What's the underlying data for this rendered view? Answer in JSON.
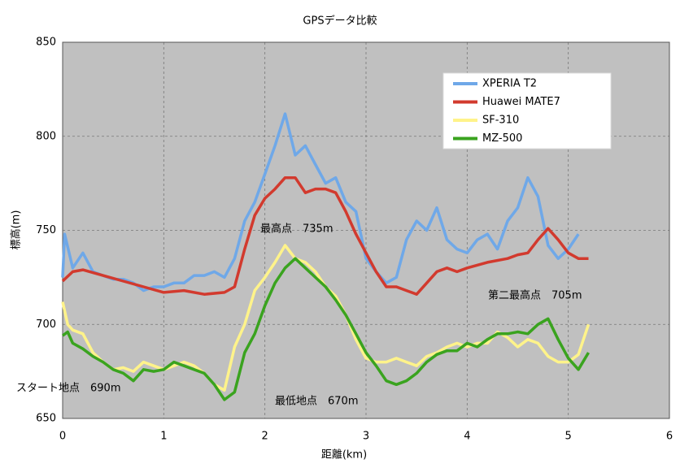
{
  "chart_data": {
    "type": "line",
    "title": "GPSデータ比較",
    "x_label": "距離(km)",
    "y_label": "標高(m)",
    "xlim": [
      0,
      6
    ],
    "xticks": [
      0,
      1,
      2,
      3,
      4,
      5,
      6
    ],
    "ylim": [
      650,
      850
    ],
    "yticks": [
      650,
      700,
      750,
      800,
      850
    ],
    "grid": true,
    "legend": "upper right",
    "series": [
      {
        "name": "XPERIA T2",
        "color": "#6fa8e8",
        "x": [
          0,
          0.02,
          0.1,
          0.2,
          0.3,
          0.4,
          0.5,
          0.6,
          0.7,
          0.8,
          0.9,
          1.0,
          1.1,
          1.2,
          1.3,
          1.4,
          1.5,
          1.6,
          1.7,
          1.8,
          1.9,
          2.0,
          2.1,
          2.2,
          2.3,
          2.4,
          2.5,
          2.6,
          2.7,
          2.8,
          2.9,
          3.0,
          3.1,
          3.2,
          3.3,
          3.4,
          3.5,
          3.6,
          3.7,
          3.8,
          3.9,
          4.0,
          4.1,
          4.2,
          4.3,
          4.4,
          4.5,
          4.6,
          4.7,
          4.8,
          4.9,
          5.0,
          5.1
        ],
        "values": [
          725,
          748,
          730,
          738,
          728,
          726,
          724,
          724,
          722,
          718,
          720,
          720,
          722,
          722,
          726,
          726,
          728,
          725,
          735,
          755,
          765,
          780,
          795,
          812,
          790,
          795,
          785,
          775,
          778,
          765,
          760,
          735,
          728,
          722,
          725,
          745,
          755,
          750,
          762,
          745,
          740,
          738,
          745,
          748,
          740,
          755,
          762,
          778,
          768,
          742,
          735,
          740,
          748
        ]
      },
      {
        "name": "Huawei MATE7",
        "color": "#d23a2e",
        "x": [
          0,
          0.1,
          0.2,
          0.4,
          0.6,
          0.8,
          1.0,
          1.2,
          1.4,
          1.6,
          1.7,
          1.8,
          1.9,
          2.0,
          2.1,
          2.2,
          2.3,
          2.4,
          2.5,
          2.6,
          2.7,
          2.8,
          2.9,
          3.0,
          3.1,
          3.2,
          3.3,
          3.4,
          3.5,
          3.6,
          3.7,
          3.8,
          3.9,
          4.0,
          4.2,
          4.4,
          4.5,
          4.6,
          4.7,
          4.8,
          4.9,
          5.0,
          5.1,
          5.2
        ],
        "values": [
          723,
          728,
          729,
          726,
          723,
          720,
          717,
          718,
          716,
          717,
          720,
          740,
          758,
          767,
          772,
          778,
          778,
          770,
          772,
          772,
          770,
          760,
          748,
          738,
          728,
          720,
          720,
          718,
          716,
          722,
          728,
          730,
          728,
          730,
          733,
          735,
          737,
          738,
          745,
          751,
          745,
          738,
          735,
          735
        ]
      },
      {
        "name": "SF-310",
        "color": "#fff38a",
        "x": [
          0,
          0.05,
          0.1,
          0.2,
          0.3,
          0.4,
          0.5,
          0.6,
          0.7,
          0.8,
          0.9,
          1.0,
          1.1,
          1.2,
          1.3,
          1.4,
          1.5,
          1.6,
          1.7,
          1.8,
          1.9,
          2.0,
          2.1,
          2.2,
          2.3,
          2.4,
          2.5,
          2.6,
          2.7,
          2.8,
          2.9,
          3.0,
          3.1,
          3.2,
          3.3,
          3.4,
          3.5,
          3.6,
          3.7,
          3.8,
          3.9,
          4.0,
          4.1,
          4.2,
          4.3,
          4.4,
          4.5,
          4.6,
          4.7,
          4.8,
          4.9,
          5.0,
          5.1,
          5.2
        ],
        "values": [
          712,
          700,
          697,
          695,
          685,
          680,
          676,
          677,
          675,
          680,
          678,
          676,
          678,
          680,
          678,
          674,
          668,
          665,
          688,
          700,
          718,
          725,
          733,
          742,
          735,
          733,
          728,
          720,
          715,
          705,
          692,
          682,
          680,
          680,
          682,
          680,
          678,
          683,
          685,
          688,
          690,
          688,
          690,
          690,
          696,
          693,
          688,
          692,
          690,
          683,
          680,
          680,
          684,
          700
        ]
      },
      {
        "name": "MZ-500",
        "color": "#3aa31f",
        "x": [
          0,
          0.05,
          0.1,
          0.2,
          0.3,
          0.4,
          0.5,
          0.6,
          0.7,
          0.8,
          0.9,
          1.0,
          1.1,
          1.2,
          1.3,
          1.4,
          1.5,
          1.6,
          1.7,
          1.8,
          1.9,
          2.0,
          2.1,
          2.2,
          2.3,
          2.4,
          2.5,
          2.6,
          2.7,
          2.8,
          2.9,
          3.0,
          3.1,
          3.2,
          3.3,
          3.4,
          3.5,
          3.6,
          3.7,
          3.8,
          3.9,
          4.0,
          4.1,
          4.2,
          4.3,
          4.4,
          4.5,
          4.6,
          4.7,
          4.8,
          4.9,
          5.0,
          5.1,
          5.2
        ],
        "values": [
          694,
          696,
          690,
          687,
          683,
          680,
          676,
          674,
          670,
          676,
          675,
          676,
          680,
          678,
          676,
          674,
          668,
          660,
          664,
          685,
          695,
          710,
          722,
          730,
          735,
          730,
          725,
          720,
          713,
          705,
          695,
          685,
          678,
          670,
          668,
          670,
          674,
          680,
          684,
          686,
          686,
          690,
          688,
          692,
          695,
          695,
          696,
          695,
          700,
          703,
          692,
          682,
          676,
          685
        ]
      }
    ],
    "annotations": [
      "最高点　735m",
      "第二最高点　705m",
      "スタート地点　690m",
      "最低地点　670m"
    ]
  }
}
